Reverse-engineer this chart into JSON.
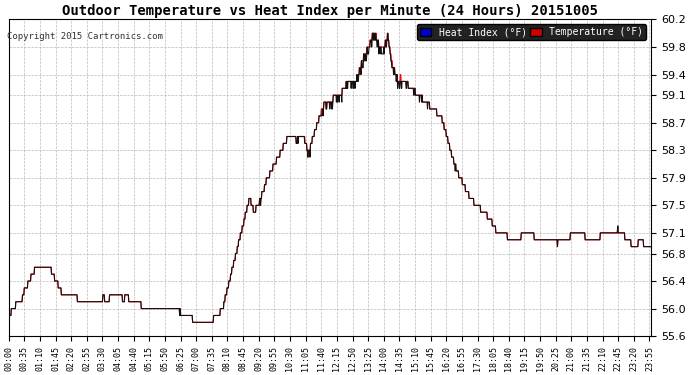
{
  "title": "Outdoor Temperature vs Heat Index per Minute (24 Hours) 20151005",
  "copyright": "Copyright 2015 Cartronics.com",
  "ylim": [
    55.6,
    60.2
  ],
  "yticks": [
    55.6,
    56.0,
    56.4,
    56.8,
    57.1,
    57.5,
    57.9,
    58.3,
    58.7,
    59.1,
    59.4,
    59.8,
    60.2
  ],
  "bg_color": "#ffffff",
  "grid_color": "#aaaaaa",
  "temp_color": "#ff0000",
  "heat_color": "#111111",
  "legend_heat_bg": "#0000cc",
  "legend_temp_bg": "#cc0000",
  "legend_text_color": "#ffffff",
  "figsize": [
    6.9,
    3.75
  ],
  "dpi": 100
}
